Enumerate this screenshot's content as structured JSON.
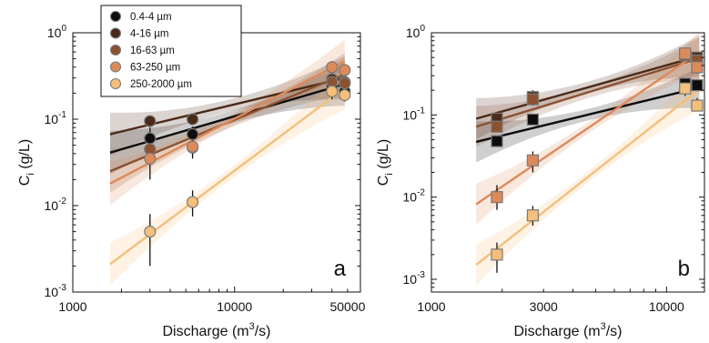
{
  "chart_data": [
    {
      "type": "scatter",
      "title": "",
      "panel_label": "a",
      "xlabel": "Discharge (m3/s)",
      "xlabel_text": "Discharge (m",
      "xlabel_sup": "3",
      "xlabel_tail": "/s)",
      "ylabel_main": "C",
      "ylabel_sub": "i",
      "ylabel_tail": " (g/L)",
      "xscale": "log",
      "yscale": "log",
      "xlim": [
        1000,
        60000
      ],
      "ylim": [
        0.001,
        1
      ],
      "xticks": [
        1000,
        10000,
        50000
      ],
      "xtick_labels": [
        "1000",
        "10000",
        "50000"
      ],
      "yticks": [
        0.001,
        0.01,
        0.1,
        1
      ],
      "ytick_labels": [
        {
          "base": "10",
          "exp": "-3"
        },
        {
          "base": "10",
          "exp": "-2"
        },
        {
          "base": "10",
          "exp": "-1"
        },
        {
          "base": "10",
          "exp": "0"
        }
      ],
      "marker": "circle",
      "legend": {
        "placement": "top-left",
        "entries": [
          "0.4-4 µm",
          "4-16 µm",
          "16-63 µm",
          "63-250 µm",
          "250-2000 µm"
        ]
      },
      "series": [
        {
          "name": "0.4-4 µm",
          "color": "#0d0d0d",
          "points": [
            [
              3000,
              0.06,
              0.045,
              0.08
            ],
            [
              5500,
              0.067,
              0.055,
              0.082
            ],
            [
              40000,
              0.24,
              0.2,
              0.29
            ],
            [
              48000,
              0.21,
              0.18,
              0.25
            ]
          ],
          "fit": {
            "x": [
              1700,
              48000
            ],
            "y": [
              0.041,
              0.255
            ]
          }
        },
        {
          "name": "4-16 µm",
          "color": "#4a2a18",
          "points": [
            [
              3000,
              0.095,
              0.085,
              0.105
            ],
            [
              5500,
              0.1,
              0.09,
              0.11
            ],
            [
              40000,
              0.29,
              0.25,
              0.33
            ],
            [
              48000,
              0.27,
              0.23,
              0.31
            ]
          ],
          "fit": {
            "x": [
              1700,
              48000
            ],
            "y": [
              0.067,
              0.3
            ]
          }
        },
        {
          "name": "16-63 µm",
          "color": "#8b5232",
          "points": [
            [
              3000,
              0.045,
              0.032,
              0.06
            ],
            [
              5500,
              0.047,
              0.038,
              0.058
            ],
            [
              40000,
              0.27,
              0.23,
              0.31
            ],
            [
              48000,
              0.26,
              0.22,
              0.3
            ]
          ],
          "fit": {
            "x": [
              1700,
              48000
            ],
            "y": [
              0.025,
              0.33
            ]
          }
        },
        {
          "name": "63-250 µm",
          "color": "#dd8a5a",
          "points": [
            [
              3000,
              0.035,
              0.02,
              0.05
            ],
            [
              5500,
              0.048,
              0.035,
              0.063
            ],
            [
              40000,
              0.4,
              0.33,
              0.47
            ],
            [
              48000,
              0.37,
              0.31,
              0.43
            ]
          ],
          "fit": {
            "x": [
              1700,
              48000
            ],
            "y": [
              0.018,
              0.47
            ]
          }
        },
        {
          "name": "250-2000 µm",
          "color": "#f4bf7a",
          "points": [
            [
              3000,
              0.005,
              0.002,
              0.008
            ],
            [
              5500,
              0.011,
              0.0075,
              0.015
            ],
            [
              40000,
              0.21,
              0.17,
              0.26
            ],
            [
              48000,
              0.19,
              0.16,
              0.23
            ]
          ],
          "fit": {
            "x": [
              1700,
              48000
            ],
            "y": [
              0.0021,
              0.23
            ]
          }
        }
      ]
    },
    {
      "type": "scatter",
      "title": "",
      "panel_label": "b",
      "xlabel": "Discharge (m3/s)",
      "xlabel_text": "Discharge (m",
      "xlabel_sup": "3",
      "xlabel_tail": "/s)",
      "ylabel_main": "C",
      "ylabel_sub": "i",
      "ylabel_tail": " (g/L)",
      "xscale": "log",
      "yscale": "log",
      "xlim": [
        1000,
        14500
      ],
      "ylim": [
        0.0007,
        1
      ],
      "xticks": [
        1000,
        3000,
        10000
      ],
      "xtick_labels": [
        "1000",
        "3000",
        "10000"
      ],
      "yticks": [
        0.001,
        0.01,
        0.1,
        1
      ],
      "ytick_labels": [
        {
          "base": "10",
          "exp": "-3"
        },
        {
          "base": "10",
          "exp": "-2"
        },
        {
          "base": "10",
          "exp": "-1"
        },
        {
          "base": "10",
          "exp": "0"
        }
      ],
      "marker": "square",
      "series": [
        {
          "name": "0.4-4 µm",
          "color": "#0d0d0d",
          "points": [
            [
              1900,
              0.048,
              0.042,
              0.056
            ],
            [
              2700,
              0.088,
              0.078,
              0.1
            ],
            [
              12000,
              0.24,
              0.21,
              0.27
            ],
            [
              13500,
              0.23,
              0.2,
              0.26
            ]
          ],
          "fit": {
            "x": [
              1550,
              13800
            ],
            "y": [
              0.047,
              0.215
            ]
          }
        },
        {
          "name": "4-16 µm",
          "color": "#4a2a18",
          "points": [
            [
              1900,
              0.09,
              0.078,
              0.1
            ],
            [
              2700,
              0.165,
              0.13,
              0.2
            ],
            [
              12000,
              0.53,
              0.46,
              0.6
            ],
            [
              13500,
              0.5,
              0.44,
              0.56
            ]
          ],
          "fit": {
            "x": [
              1550,
              13800
            ],
            "y": [
              0.09,
              0.52
            ]
          }
        },
        {
          "name": "16-63 µm",
          "color": "#8b5232",
          "points": [
            [
              1900,
              0.072,
              0.063,
              0.082
            ],
            [
              2700,
              0.155,
              0.13,
              0.18
            ],
            [
              12000,
              0.53,
              0.46,
              0.6
            ],
            [
              13500,
              0.46,
              0.4,
              0.52
            ]
          ],
          "fit": {
            "x": [
              1550,
              13800
            ],
            "y": [
              0.072,
              0.49
            ]
          }
        },
        {
          "name": "63-250 µm",
          "color": "#dd8a5a",
          "points": [
            [
              1900,
              0.01,
              0.007,
              0.014
            ],
            [
              2700,
              0.028,
              0.02,
              0.036
            ],
            [
              12000,
              0.56,
              0.48,
              0.64
            ],
            [
              13500,
              0.38,
              0.32,
              0.44
            ]
          ],
          "fit": {
            "x": [
              1550,
              13800
            ],
            "y": [
              0.0082,
              0.58
            ]
          }
        },
        {
          "name": "250-2000 µm",
          "color": "#f4bf7a",
          "points": [
            [
              1900,
              0.002,
              0.0012,
              0.0028
            ],
            [
              2700,
              0.006,
              0.0045,
              0.0078
            ],
            [
              12000,
              0.21,
              0.17,
              0.25
            ],
            [
              13500,
              0.13,
              0.11,
              0.16
            ]
          ],
          "fit": {
            "x": [
              1550,
              13800
            ],
            "y": [
              0.0015,
              0.205
            ]
          }
        }
      ]
    }
  ]
}
